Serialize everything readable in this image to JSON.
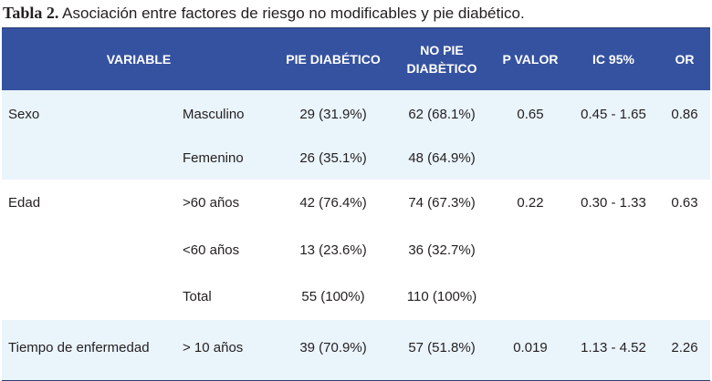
{
  "caption": {
    "number": "Tabla 2.",
    "text": "Asociación entre factores de riesgo no modificables y pie diabético."
  },
  "table": {
    "headers": {
      "variable": "VARIABLE",
      "pie": "PIE DIABÉTICO",
      "nopie_line1": "NO PIE",
      "nopie_line2": "DIABÈTICO",
      "pvalor": "P VALOR",
      "ic": "IC 95%",
      "or": "OR"
    },
    "rows": [
      {
        "variable": "Sexo",
        "sub": "Masculino",
        "pie": "29 (31.9%)",
        "nopie": "62 (68.1%)",
        "p": "0.65",
        "ic": "0.45 - 1.65",
        "or": "0.86"
      },
      {
        "variable": "",
        "sub": "Femenino",
        "pie": "26 (35.1%)",
        "nopie": "48 (64.9%)",
        "p": "",
        "ic": "",
        "or": ""
      },
      {
        "variable": "Edad",
        "sub": ">60 años",
        "pie": "42 (76.4%)",
        "nopie": "74 (67.3%)",
        "p": "0.22",
        "ic": "0.30 - 1.33",
        "or": "0.63"
      },
      {
        "variable": "",
        "sub": "<60 años",
        "pie": "13 (23.6%)",
        "nopie": "36 (32.7%)",
        "p": "",
        "ic": "",
        "or": ""
      },
      {
        "variable": "",
        "sub": "Total",
        "pie": "55 (100%)",
        "nopie": "110 (100%)",
        "p": "",
        "ic": "",
        "or": ""
      },
      {
        "variable": "Tiempo de enfermedad",
        "sub": "> 10 años",
        "pie": "39 (70.9%)",
        "nopie": "57 (51.8%)",
        "p": "0.019",
        "ic": "1.13 - 4.52",
        "or": "2.26"
      }
    ]
  }
}
